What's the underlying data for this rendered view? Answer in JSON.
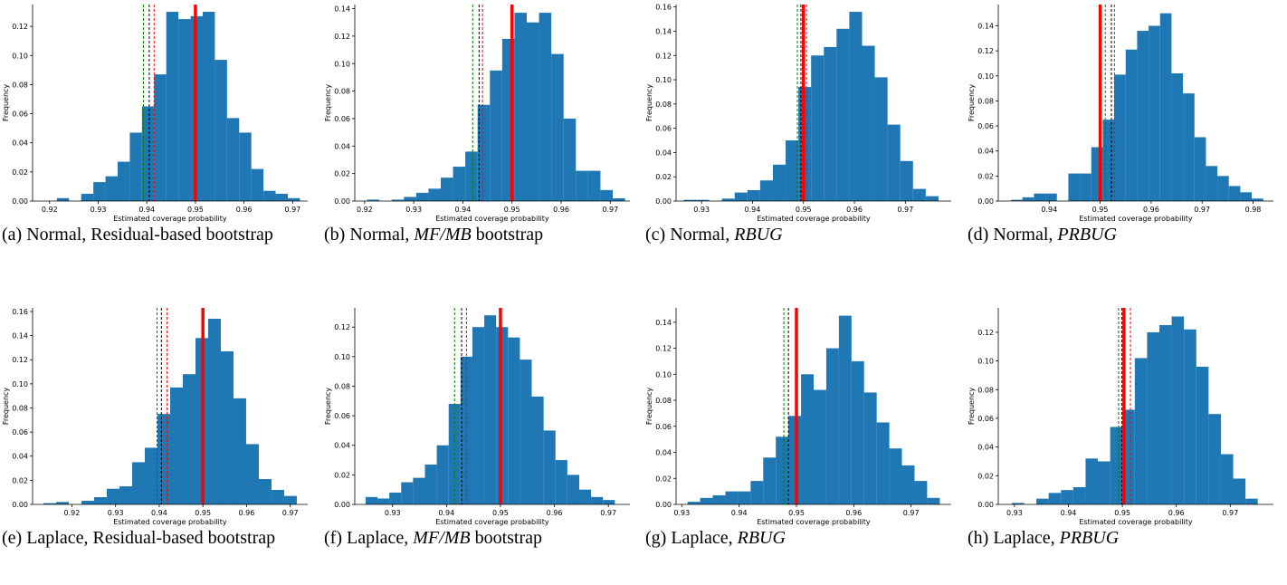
{
  "chart_data": [
    {
      "type": "histogram",
      "caption": [
        "(a) Normal, Residual-based bootstrap"
      ],
      "xlabel": "Estimated coverage probability",
      "ylabel": "Frequency",
      "color": "#1f77b4",
      "bins": [
        0.9215,
        0.924,
        0.9265,
        0.929,
        0.9315,
        0.934,
        0.9365,
        0.939,
        0.9415,
        0.944,
        0.9465,
        0.949,
        0.9515,
        0.954,
        0.9565,
        0.959,
        0.9615,
        0.964,
        0.9665,
        0.969,
        0.9715
      ],
      "counts": [
        0.002,
        0.0,
        0.005,
        0.013,
        0.017,
        0.027,
        0.047,
        0.065,
        0.087,
        0.13,
        0.125,
        0.127,
        0.13,
        0.097,
        0.057,
        0.047,
        0.022,
        0.007,
        0.005,
        0.002
      ],
      "xlim": [
        0.9165,
        0.9731
      ],
      "xticks": [
        0.92,
        0.93,
        0.94,
        0.95,
        0.96,
        0.97
      ],
      "ylim": [
        0,
        0.135
      ],
      "yticks": [
        {
          "value": 0,
          "label": "0.00"
        },
        0.02,
        0.04,
        0.06,
        0.08,
        {
          "value": 0.1,
          "label": "0.10"
        },
        0.12
      ],
      "vlines": [
        {
          "value": 0.9393,
          "color": "green",
          "style": "dashed"
        },
        {
          "value": 0.9405,
          "color": "black",
          "style": "dashed"
        },
        {
          "value": 0.9415,
          "color": "red",
          "style": "dashed"
        },
        {
          "value": 0.95,
          "color": "red",
          "style": "solid"
        }
      ]
    },
    {
      "type": "histogram",
      "caption": [
        "(b) Normal, ",
        "MF/MB",
        " bootstrap"
      ],
      "xlabel": "Estimated coverage probability",
      "ylabel": "Frequency",
      "color": "#1f77b4",
      "bins": [
        0.9205,
        0.923,
        0.9255,
        0.928,
        0.9305,
        0.933,
        0.9355,
        0.938,
        0.9405,
        0.943,
        0.9455,
        0.948,
        0.9505,
        0.953,
        0.9555,
        0.958,
        0.9605,
        0.963,
        0.9655,
        0.968,
        0.9705,
        0.973
      ],
      "counts": [
        0.001,
        0.0,
        0.001,
        0.003,
        0.006,
        0.009,
        0.017,
        0.025,
        0.036,
        0.07,
        0.095,
        0.118,
        0.137,
        0.13,
        0.137,
        0.107,
        0.06,
        0.022,
        0.022,
        0.008,
        0.002
      ],
      "xlim": [
        0.918,
        0.974
      ],
      "xticks": [
        0.92,
        0.93,
        0.94,
        0.95,
        0.96,
        0.97
      ],
      "ylim": [
        0,
        0.143
      ],
      "yticks": [
        {
          "value": 0,
          "label": "0.00"
        },
        0.02,
        0.04,
        0.06,
        0.08,
        {
          "value": 0.1,
          "label": "0.10"
        },
        0.12,
        0.14
      ],
      "vlines": [
        {
          "value": 0.942,
          "color": "green",
          "style": "dashed"
        },
        {
          "value": 0.9433,
          "color": "black",
          "style": "dashed"
        },
        {
          "value": 0.944,
          "color": "red",
          "style": "dashed"
        },
        {
          "value": 0.95,
          "color": "red",
          "style": "solid"
        }
      ]
    },
    {
      "type": "histogram",
      "caption": [
        "(c) Normal, ",
        "RBUG"
      ],
      "xlabel": "Estimated coverage probability",
      "ylabel": "Frequency",
      "color": "#1f77b4",
      "bins": [
        0.9265,
        0.929,
        0.9315,
        0.934,
        0.9365,
        0.939,
        0.9415,
        0.944,
        0.9465,
        0.949,
        0.9515,
        0.954,
        0.9565,
        0.959,
        0.9615,
        0.964,
        0.9665,
        0.969,
        0.9715,
        0.974,
        0.9765
      ],
      "counts": [
        0.001,
        0.001,
        0.0,
        0.002,
        0.007,
        0.009,
        0.017,
        0.03,
        0.05,
        0.094,
        0.12,
        0.127,
        0.142,
        0.156,
        0.128,
        0.102,
        0.063,
        0.033,
        0.01,
        0.004
      ],
      "xlim": [
        0.925,
        0.979
      ],
      "xticks": [
        0.93,
        0.94,
        0.95,
        0.96,
        0.97
      ],
      "ylim": [
        0,
        0.162
      ],
      "yticks": [
        {
          "value": 0,
          "label": "0.00"
        },
        0.02,
        0.04,
        0.06,
        0.08,
        {
          "value": 0.1,
          "label": "0.10"
        },
        0.12,
        0.14,
        0.16
      ],
      "vlines": [
        {
          "value": 0.9488,
          "color": "green",
          "style": "dashed"
        },
        {
          "value": 0.9495,
          "color": "black",
          "style": "dashed"
        },
        {
          "value": 0.9506,
          "color": "red",
          "style": "dashed"
        },
        {
          "value": 0.95,
          "color": "red",
          "style": "solid"
        }
      ]
    },
    {
      "type": "histogram",
      "caption": [
        "(d) Normal, ",
        "PRBUG"
      ],
      "xlabel": "Estimated coverage probability",
      "ylabel": "Frequency",
      "color": "#1f77b4",
      "bins": [
        0.9325,
        0.93475,
        0.937,
        0.93925,
        0.9415,
        0.94375,
        0.946,
        0.94825,
        0.9505,
        0.95275,
        0.955,
        0.95725,
        0.9595,
        0.96175,
        0.964,
        0.96625,
        0.9685,
        0.97075,
        0.973,
        0.97525,
        0.9775,
        0.97975,
        0.982
      ],
      "counts": [
        0.001,
        0.003,
        0.006,
        0.006,
        0.0,
        0.022,
        0.022,
        0.043,
        0.065,
        0.101,
        0.121,
        0.136,
        0.14,
        0.15,
        0.102,
        0.086,
        0.051,
        0.028,
        0.02,
        0.012,
        0.007,
        0.002
      ],
      "xlim": [
        0.93,
        0.984
      ],
      "xticks": [
        0.94,
        0.95,
        0.96,
        0.97,
        0.98
      ],
      "ylim": [
        0,
        0.157
      ],
      "yticks": [
        {
          "value": 0,
          "label": "0.00"
        },
        0.02,
        0.04,
        0.06,
        0.08,
        {
          "value": 0.1,
          "label": "0.10"
        },
        0.12,
        0.14
      ],
      "vlines": [
        {
          "value": 0.951,
          "color": "green",
          "style": "dashed"
        },
        {
          "value": 0.9522,
          "color": "black",
          "style": "dashed"
        },
        {
          "value": 0.9528,
          "color": "red",
          "style": "dashed"
        },
        {
          "value": 0.95,
          "color": "red",
          "style": "solid"
        }
      ]
    },
    {
      "type": "histogram",
      "caption": [
        "(e) Laplace, Residual-based bootstrap"
      ],
      "xlabel": "Estimated coverage probability",
      "ylabel": "Frequency",
      "color": "#1f77b4",
      "bins": [
        0.9135,
        0.9164,
        0.9193,
        0.9222,
        0.9251,
        0.928,
        0.9309,
        0.9338,
        0.9367,
        0.9396,
        0.9425,
        0.9454,
        0.9483,
        0.9512,
        0.9541,
        0.957,
        0.9599,
        0.9628,
        0.9657,
        0.9686,
        0.9715
      ],
      "counts": [
        0.001,
        0.002,
        0.0,
        0.003,
        0.006,
        0.013,
        0.015,
        0.035,
        0.047,
        0.075,
        0.097,
        0.108,
        0.138,
        0.154,
        0.127,
        0.088,
        0.05,
        0.021,
        0.012,
        0.007
      ],
      "xlim": [
        0.911,
        0.974
      ],
      "xticks": [
        0.92,
        0.93,
        0.94,
        0.95,
        0.96,
        0.97
      ],
      "ylim": [
        0,
        0.163
      ],
      "yticks": [
        {
          "value": 0,
          "label": "0.00"
        },
        0.02,
        0.04,
        0.06,
        0.08,
        {
          "value": 0.1,
          "label": "0.10"
        },
        0.12,
        0.14,
        0.16
      ],
      "vlines": [
        {
          "value": 0.9395,
          "color": "green",
          "style": "dashed"
        },
        {
          "value": 0.9405,
          "color": "black",
          "style": "dashed"
        },
        {
          "value": 0.9418,
          "color": "red",
          "style": "dashed"
        },
        {
          "value": 0.95,
          "color": "red",
          "style": "solid"
        }
      ]
    },
    {
      "type": "histogram",
      "caption": [
        "(f) Laplace, ",
        "MF/MB",
        " bootstrap"
      ],
      "xlabel": "Estimated coverage probability",
      "ylabel": "Frequency",
      "color": "#1f77b4",
      "bins": [
        0.925,
        0.9272,
        0.9294,
        0.9316,
        0.9338,
        0.936,
        0.9382,
        0.9404,
        0.9426,
        0.9448,
        0.947,
        0.9492,
        0.9514,
        0.9536,
        0.9558,
        0.958,
        0.9602,
        0.9624,
        0.9646,
        0.9668,
        0.969,
        0.9712
      ],
      "counts": [
        0.005,
        0.004,
        0.008,
        0.015,
        0.018,
        0.027,
        0.04,
        0.068,
        0.1,
        0.12,
        0.128,
        0.12,
        0.113,
        0.098,
        0.073,
        0.05,
        0.03,
        0.02,
        0.01,
        0.005,
        0.003
      ],
      "xlim": [
        0.923,
        0.974
      ],
      "xticks": [
        0.93,
        0.94,
        0.95,
        0.96,
        0.97
      ],
      "ylim": [
        0,
        0.133
      ],
      "yticks": [
        {
          "value": 0,
          "label": "0.00"
        },
        0.02,
        0.04,
        0.06,
        0.08,
        {
          "value": 0.1,
          "label": "0.10"
        },
        0.12
      ],
      "vlines": [
        {
          "value": 0.9415,
          "color": "green",
          "style": "dashed"
        },
        {
          "value": 0.9428,
          "color": "black",
          "style": "dashed"
        },
        {
          "value": 0.9437,
          "color": "red",
          "style": "dashed"
        },
        {
          "value": 0.95,
          "color": "red",
          "style": "solid"
        }
      ]
    },
    {
      "type": "histogram",
      "caption": [
        "(g) Laplace, ",
        "RBUG"
      ],
      "xlabel": "Estimated coverage probability",
      "ylabel": "Frequency",
      "color": "#1f77b4",
      "bins": [
        0.931,
        0.9332,
        0.9354,
        0.9376,
        0.9398,
        0.942,
        0.9442,
        0.9464,
        0.9486,
        0.9508,
        0.953,
        0.9552,
        0.9574,
        0.9596,
        0.9618,
        0.964,
        0.9662,
        0.9684,
        0.9706,
        0.9728,
        0.975
      ],
      "counts": [
        0.002,
        0.005,
        0.007,
        0.01,
        0.01,
        0.018,
        0.036,
        0.052,
        0.068,
        0.1,
        0.088,
        0.12,
        0.145,
        0.11,
        0.086,
        0.063,
        0.043,
        0.03,
        0.018,
        0.005
      ],
      "xlim": [
        0.929,
        0.977
      ],
      "xticks": [
        0.93,
        0.94,
        0.95,
        0.96,
        0.97
      ],
      "ylim": [
        0,
        0.151
      ],
      "yticks": [
        {
          "value": 0,
          "label": "0.00"
        },
        0.02,
        0.04,
        0.06,
        0.08,
        {
          "value": 0.1,
          "label": "0.10"
        },
        0.12,
        0.14
      ],
      "vlines": [
        {
          "value": 0.9478,
          "color": "green",
          "style": "dashed"
        },
        {
          "value": 0.9486,
          "color": "black",
          "style": "dashed"
        },
        {
          "value": 0.95,
          "color": "red",
          "style": "solid"
        }
      ]
    },
    {
      "type": "histogram",
      "caption": [
        "(h) Laplace, ",
        "PRBUG"
      ],
      "xlabel": "Estimated coverage probability",
      "ylabel": "Frequency",
      "color": "#1f77b4",
      "bins": [
        0.9295,
        0.93178,
        0.93406,
        0.93634,
        0.93862,
        0.9409,
        0.94318,
        0.94546,
        0.94774,
        0.95002,
        0.9523,
        0.95458,
        0.95686,
        0.95914,
        0.96142,
        0.9637,
        0.96598,
        0.96826,
        0.97054,
        0.97282,
        0.9751
      ],
      "counts": [
        0.001,
        0.0,
        0.004,
        0.008,
        0.01,
        0.012,
        0.032,
        0.03,
        0.054,
        0.066,
        0.102,
        0.12,
        0.125,
        0.131,
        0.122,
        0.096,
        0.063,
        0.035,
        0.018,
        0.004
      ],
      "xlim": [
        0.927,
        0.978
      ],
      "xticks": [
        0.93,
        0.94,
        0.95,
        0.96,
        0.97
      ],
      "ylim": [
        0,
        0.137
      ],
      "yticks": [
        {
          "value": 0,
          "label": "0.00"
        },
        0.02,
        0.04,
        0.06,
        0.08,
        {
          "value": 0.1,
          "label": "0.10"
        },
        0.12
      ],
      "vlines": [
        {
          "value": 0.9493,
          "color": "green",
          "style": "dashed"
        },
        {
          "value": 0.9499,
          "color": "black",
          "style": "dashed"
        },
        {
          "value": 0.9515,
          "color": "red",
          "style": "dashed"
        },
        {
          "value": 0.9503,
          "color": "red",
          "style": "solid"
        }
      ]
    }
  ]
}
